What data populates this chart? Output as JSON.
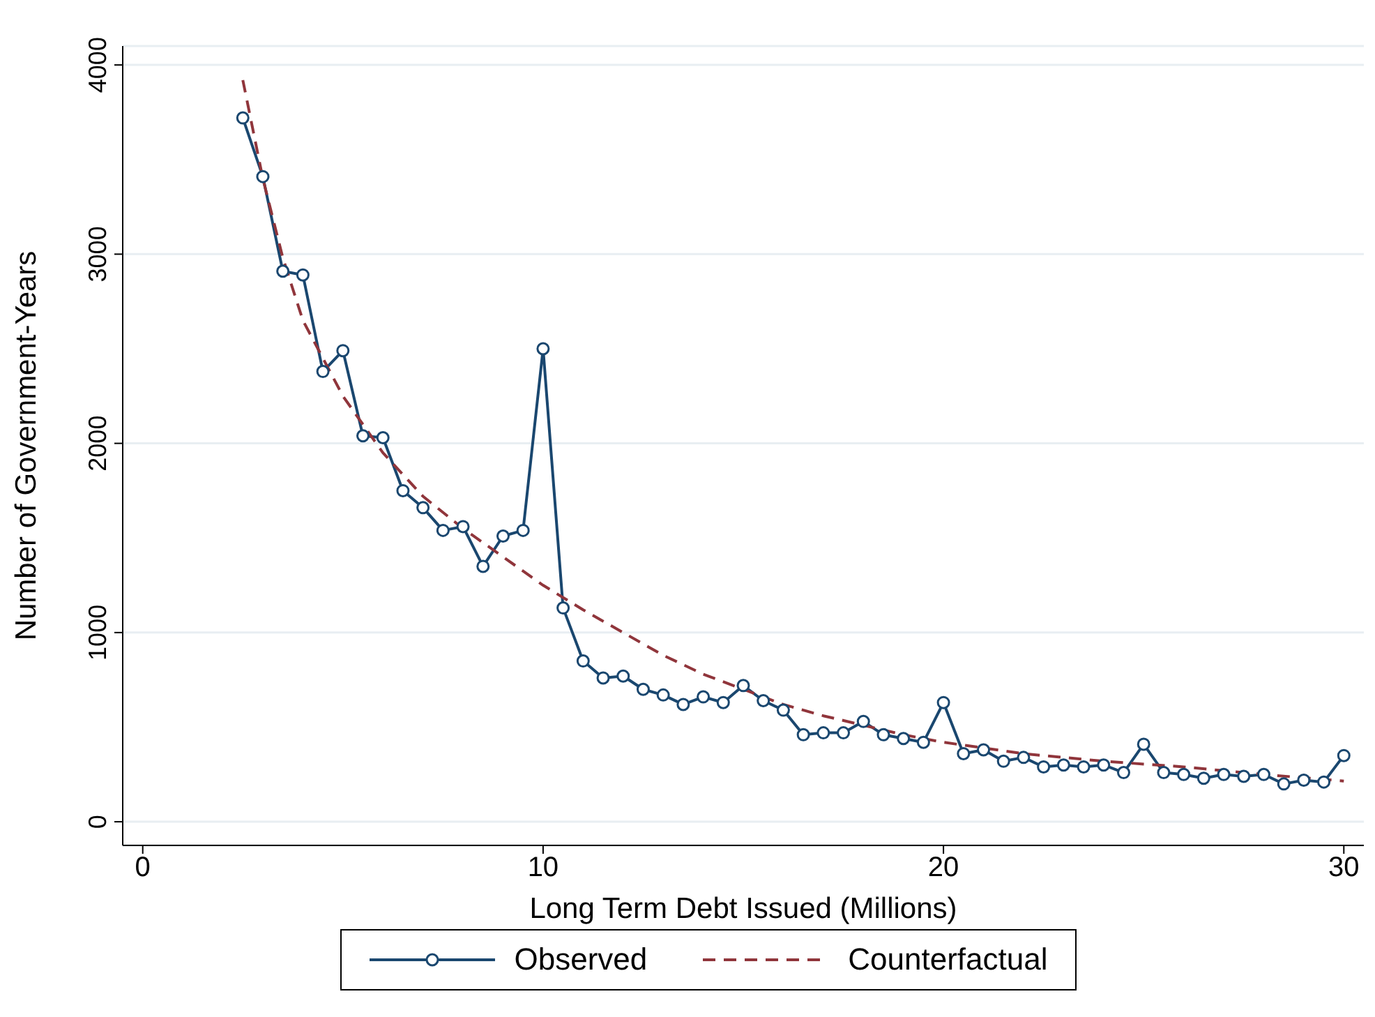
{
  "chart_data": {
    "type": "line",
    "xlabel": "Long Term Debt Issued (Millions)",
    "ylabel": "Number of Government-Years",
    "xlim": [
      -0.5,
      30.5
    ],
    "ylim": [
      -125,
      4100
    ],
    "xticks": [
      0,
      10,
      20,
      30
    ],
    "yticks": [
      0,
      1000,
      2000,
      3000,
      4000
    ],
    "grid": "y",
    "legend": "bottom",
    "series": [
      {
        "name": "Observed",
        "color": "#1a476f",
        "marker": "circle",
        "line_style": "solid",
        "x": [
          2.5,
          3,
          3.5,
          4,
          4.5,
          5,
          5.5,
          6,
          6.5,
          7,
          7.5,
          8,
          8.5,
          9,
          9.5,
          10,
          10.5,
          11,
          11.5,
          12,
          12.5,
          13,
          13.5,
          14,
          14.5,
          15,
          15.5,
          16,
          16.5,
          17,
          17.5,
          18,
          18.5,
          19,
          19.5,
          20,
          20.5,
          21,
          21.5,
          22,
          22.5,
          23,
          23.5,
          24,
          24.5,
          25,
          25.5,
          26,
          26.5,
          27,
          27.5,
          28,
          28.5,
          29,
          29.5,
          30
        ],
        "values": [
          3720,
          3410,
          2910,
          2890,
          2380,
          2490,
          2040,
          2030,
          1750,
          1660,
          1540,
          1560,
          1350,
          1510,
          1540,
          2500,
          1130,
          850,
          760,
          770,
          700,
          670,
          620,
          660,
          630,
          720,
          640,
          590,
          460,
          470,
          470,
          530,
          460,
          440,
          420,
          630,
          360,
          380,
          320,
          340,
          290,
          300,
          290,
          300,
          260,
          410,
          260,
          250,
          230,
          250,
          240,
          250,
          200,
          220,
          210,
          350
        ]
      },
      {
        "name": "Counterfactual",
        "color": "#90353b",
        "marker": "none",
        "line_style": "dashed",
        "x": [
          2.5,
          3,
          3.5,
          4,
          5,
          6,
          7,
          8,
          9,
          10,
          11,
          12,
          13,
          14,
          15,
          16,
          17,
          18,
          19,
          20,
          22,
          24,
          26,
          28,
          30
        ],
        "values": [
          3920,
          3400,
          2980,
          2650,
          2250,
          1950,
          1720,
          1550,
          1400,
          1250,
          1120,
          1000,
          880,
          780,
          700,
          620,
          560,
          510,
          460,
          420,
          360,
          320,
          290,
          250,
          215
        ]
      }
    ]
  }
}
